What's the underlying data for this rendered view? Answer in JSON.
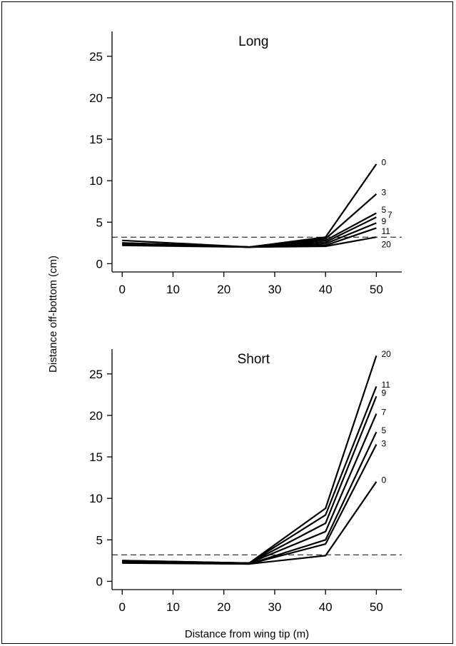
{
  "chart_data": [
    {
      "type": "line",
      "title": "Long",
      "x": [
        0,
        25,
        40,
        50
      ],
      "xticks": [
        0,
        10,
        20,
        30,
        40,
        50
      ],
      "yticks": [
        0,
        5,
        10,
        15,
        20,
        25
      ],
      "xlim": [
        -2,
        55
      ],
      "ylim": [
        -1,
        28
      ],
      "reference_line": {
        "y": 3.2,
        "style": "dashed"
      },
      "series": [
        {
          "name": "0",
          "values": [
            2.5,
            2.0,
            3.2,
            12.0
          ]
        },
        {
          "name": "3",
          "values": [
            2.5,
            2.0,
            3.0,
            8.4
          ]
        },
        {
          "name": "5",
          "values": [
            2.4,
            2.0,
            2.8,
            6.1
          ]
        },
        {
          "name": "7",
          "values": [
            2.4,
            2.0,
            2.6,
            5.6
          ]
        },
        {
          "name": "9",
          "values": [
            2.3,
            2.0,
            2.4,
            4.9
          ]
        },
        {
          "name": "11",
          "values": [
            2.2,
            2.0,
            2.2,
            4.3
          ]
        },
        {
          "name": "20",
          "values": [
            2.8,
            2.0,
            2.1,
            3.2
          ]
        }
      ],
      "labels": [
        {
          "text": "0",
          "x": 51,
          "y": 12.2
        },
        {
          "text": "3",
          "x": 51,
          "y": 8.6
        },
        {
          "text": "5",
          "x": 51,
          "y": 6.5
        },
        {
          "text": "7",
          "x": 52.2,
          "y": 5.9
        },
        {
          "text": "9",
          "x": 51,
          "y": 5.1
        },
        {
          "text": "11",
          "x": 51,
          "y": 3.9
        },
        {
          "text": "20",
          "x": 51,
          "y": 2.3
        }
      ]
    },
    {
      "type": "line",
      "title": "Short",
      "x": [
        0,
        25,
        40,
        50
      ],
      "xticks": [
        0,
        10,
        20,
        30,
        40,
        50
      ],
      "yticks": [
        0,
        5,
        10,
        15,
        20,
        25
      ],
      "xlim": [
        -2,
        55
      ],
      "ylim": [
        -1,
        28
      ],
      "reference_line": {
        "y": 3.2,
        "style": "dashed"
      },
      "series": [
        {
          "name": "0",
          "values": [
            2.2,
            2.1,
            3.1,
            12.0
          ]
        },
        {
          "name": "3",
          "values": [
            2.3,
            2.1,
            4.5,
            16.5
          ]
        },
        {
          "name": "5",
          "values": [
            2.3,
            2.1,
            5.0,
            18.0
          ]
        },
        {
          "name": "7",
          "values": [
            2.4,
            2.2,
            6.0,
            20.2
          ]
        },
        {
          "name": "9",
          "values": [
            2.4,
            2.2,
            7.0,
            22.3
          ]
        },
        {
          "name": "11",
          "values": [
            2.5,
            2.2,
            8.0,
            23.5
          ]
        },
        {
          "name": "20",
          "values": [
            2.5,
            2.2,
            8.8,
            27.2
          ]
        }
      ],
      "labels": [
        {
          "text": "20",
          "x": 51,
          "y": 27.4
        },
        {
          "text": "11",
          "x": 51,
          "y": 23.7
        },
        {
          "text": "9",
          "x": 51,
          "y": 22.7
        },
        {
          "text": "7",
          "x": 51,
          "y": 20.4
        },
        {
          "text": "5",
          "x": 51,
          "y": 18.2
        },
        {
          "text": "3",
          "x": 51,
          "y": 16.6
        },
        {
          "text": "0",
          "x": 51,
          "y": 12.2
        }
      ]
    }
  ],
  "ylabel": "Distance off-bottom (cm)",
  "xlabel": "Distance from wing tip (m)"
}
